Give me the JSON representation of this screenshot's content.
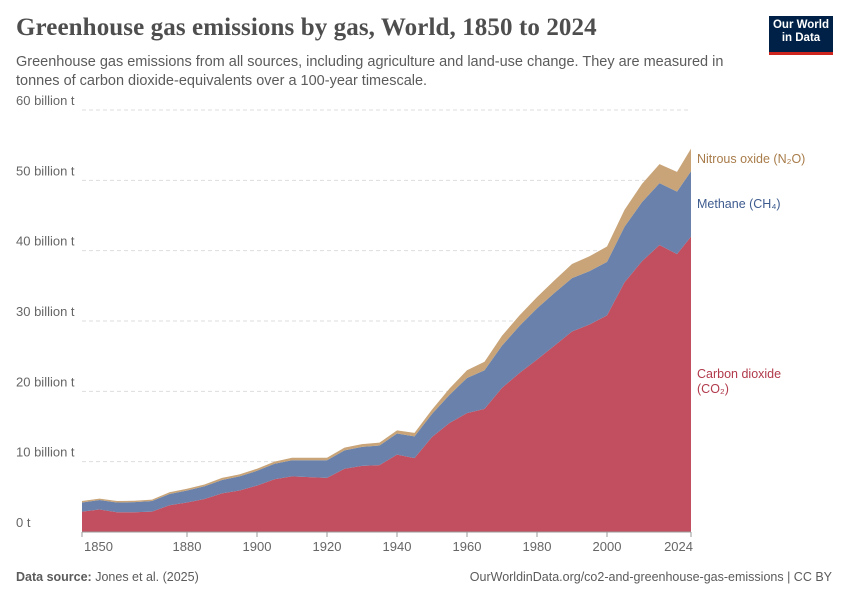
{
  "title": "Greenhouse gas emissions by gas, World, 1850 to 2024",
  "subtitle": "Greenhouse gas emissions from all sources, including agriculture and land-use change. They are measured in tonnes of carbon dioxide-equivalents over a 100-year timescale.",
  "logo": {
    "line1": "Our World",
    "line2": "in Data",
    "bg_color": "#002147",
    "accent_color": "#ce261e"
  },
  "footer": {
    "source_label": "Data source:",
    "source_value": "Jones et al. (2025)",
    "url_license": "OurWorldinData.org/co2-and-greenhouse-gas-emissions | CC BY"
  },
  "chart_data": {
    "type": "area",
    "stacked": true,
    "title": "Greenhouse gas emissions by gas, World, 1850 to 2024",
    "xlabel": "",
    "ylabel": "",
    "xlim": [
      1850,
      2024
    ],
    "ylim": [
      0,
      60
    ],
    "grid": "horizontal dashed",
    "legend": "right, inline labels",
    "y_ticks": [
      {
        "value": 0,
        "label": "0 t"
      },
      {
        "value": 10,
        "label": "10 billion t"
      },
      {
        "value": 20,
        "label": "20 billion t"
      },
      {
        "value": 30,
        "label": "30 billion t"
      },
      {
        "value": 40,
        "label": "40 billion t"
      },
      {
        "value": 50,
        "label": "50 billion t"
      },
      {
        "value": 60,
        "label": "60 billion t"
      }
    ],
    "x_ticks": [
      "1850",
      "1880",
      "1900",
      "1920",
      "1940",
      "1960",
      "1980",
      "2000",
      "2024"
    ],
    "x": [
      1850,
      1855,
      1860,
      1865,
      1870,
      1875,
      1880,
      1885,
      1890,
      1895,
      1900,
      1905,
      1910,
      1915,
      1920,
      1925,
      1930,
      1935,
      1940,
      1945,
      1950,
      1955,
      1960,
      1965,
      1970,
      1975,
      1980,
      1985,
      1990,
      1995,
      2000,
      2005,
      2010,
      2015,
      2020,
      2024
    ],
    "series": [
      {
        "name": "Carbon dioxide (CO₂)",
        "label_lines": [
          "Carbon dioxide",
          "(CO₂)"
        ],
        "color": "#c14f5f",
        "label_color": "#b13a4b",
        "values": [
          2.9,
          3.2,
          2.8,
          2.8,
          2.9,
          3.8,
          4.2,
          4.7,
          5.5,
          5.9,
          6.6,
          7.5,
          7.9,
          7.8,
          7.7,
          9.0,
          9.4,
          9.5,
          11.0,
          10.5,
          13.5,
          15.5,
          16.9,
          17.5,
          20.5,
          22.6,
          24.5,
          26.5,
          28.5,
          29.5,
          30.8,
          35.5,
          38.5,
          40.8,
          39.5,
          42.0
        ]
      },
      {
        "name": "Methane (CH₄)",
        "label_lines": [
          "Methane (CH₄)"
        ],
        "color": "#6a82ab",
        "label_color": "#3e5b8f",
        "values": [
          1.3,
          1.35,
          1.4,
          1.45,
          1.5,
          1.6,
          1.7,
          1.8,
          1.9,
          2.0,
          2.1,
          2.2,
          2.3,
          2.4,
          2.5,
          2.6,
          2.7,
          2.8,
          3.0,
          3.1,
          3.3,
          4.0,
          5.0,
          5.5,
          6.0,
          6.7,
          7.3,
          7.5,
          7.6,
          7.6,
          7.6,
          7.9,
          8.4,
          8.8,
          8.9,
          9.3
        ]
      },
      {
        "name": "Nitrous oxide (N₂O)",
        "label_lines": [
          "Nitrous oxide (N₂O)"
        ],
        "color": "#c8a478",
        "label_color": "#a87c4a",
        "values": [
          0.2,
          0.2,
          0.2,
          0.2,
          0.2,
          0.25,
          0.25,
          0.25,
          0.3,
          0.3,
          0.3,
          0.3,
          0.35,
          0.35,
          0.35,
          0.4,
          0.4,
          0.4,
          0.45,
          0.5,
          0.6,
          0.9,
          1.1,
          1.2,
          1.4,
          1.5,
          1.6,
          1.8,
          2.0,
          2.1,
          2.2,
          2.4,
          2.6,
          2.7,
          2.8,
          3.2
        ]
      }
    ]
  }
}
